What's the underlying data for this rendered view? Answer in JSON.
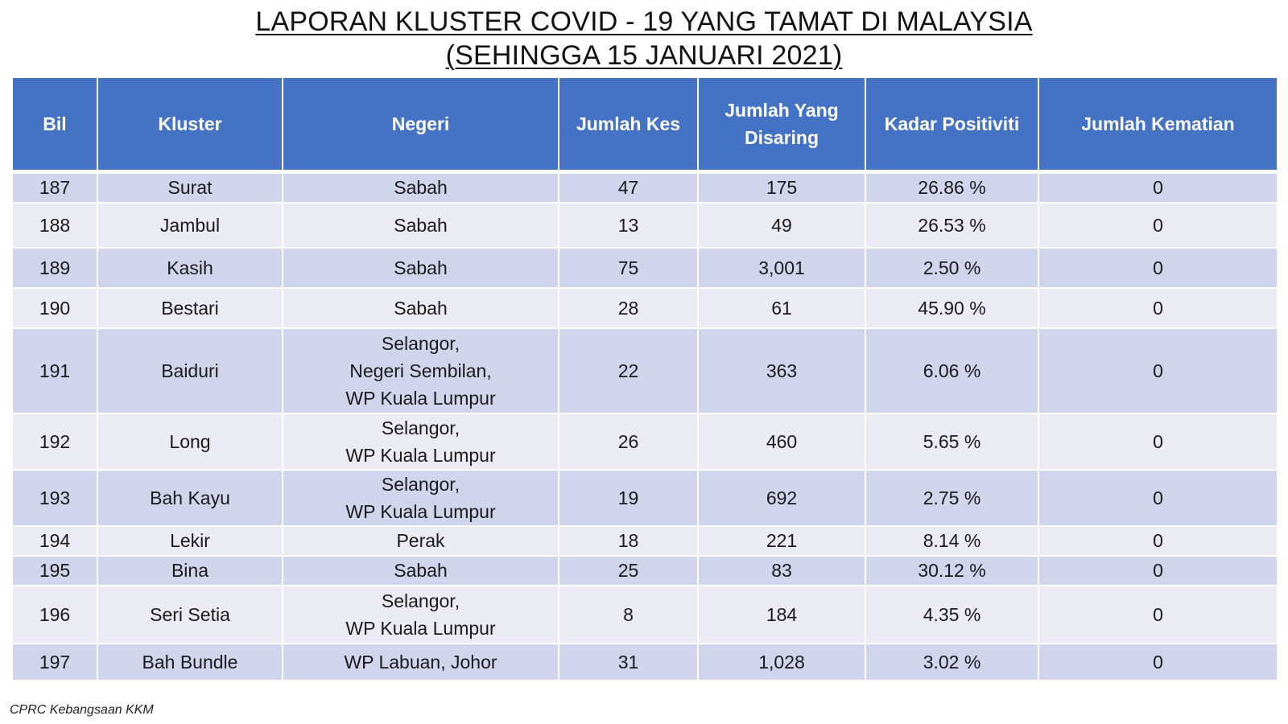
{
  "title": {
    "line1": "LAPORAN KLUSTER COVID - 19 YANG TAMAT DI MALAYSIA",
    "line2": "(SEHINGGA 15 JANUARI 2021)"
  },
  "table": {
    "headers": {
      "bil": "Bil",
      "kluster": "Kluster",
      "negeri": "Negeri",
      "jumlah_kes": "Jumlah Kes",
      "jumlah_disaring_1": "Jumlah Yang",
      "jumlah_disaring_2": "Disaring",
      "kadar_positiviti": "Kadar Positiviti",
      "jumlah_kematian": "Jumlah Kematian"
    },
    "rows": [
      {
        "bil": "187",
        "kluster": "Surat",
        "negeri": [
          "Sabah"
        ],
        "kes": "47",
        "disaring": "175",
        "positiviti": "26.86 %",
        "kematian": "0"
      },
      {
        "bil": "188",
        "kluster": "Jambul",
        "negeri": [
          "Sabah"
        ],
        "kes": "13",
        "disaring": "49",
        "positiviti": "26.53 %",
        "kematian": "0"
      },
      {
        "bil": "189",
        "kluster": "Kasih",
        "negeri": [
          "Sabah"
        ],
        "kes": "75",
        "disaring": "3,001",
        "positiviti": "2.50 %",
        "kematian": "0"
      },
      {
        "bil": "190",
        "kluster": "Bestari",
        "negeri": [
          "Sabah"
        ],
        "kes": "28",
        "disaring": "61",
        "positiviti": "45.90 %",
        "kematian": "0"
      },
      {
        "bil": "191",
        "kluster": "Baiduri",
        "negeri": [
          "Selangor,",
          "Negeri Sembilan,",
          "WP Kuala Lumpur"
        ],
        "kes": "22",
        "disaring": "363",
        "positiviti": "6.06 %",
        "kematian": "0"
      },
      {
        "bil": "192",
        "kluster": "Long",
        "negeri": [
          "Selangor,",
          "WP Kuala Lumpur"
        ],
        "kes": "26",
        "disaring": "460",
        "positiviti": "5.65 %",
        "kematian": "0"
      },
      {
        "bil": "193",
        "kluster": "Bah Kayu",
        "negeri": [
          "Selangor,",
          "WP Kuala Lumpur"
        ],
        "kes": "19",
        "disaring": "692",
        "positiviti": "2.75 %",
        "kematian": "0"
      },
      {
        "bil": "194",
        "kluster": "Lekir",
        "negeri": [
          "Perak"
        ],
        "kes": "18",
        "disaring": "221",
        "positiviti": "8.14 %",
        "kematian": "0"
      },
      {
        "bil": "195",
        "kluster": "Bina",
        "negeri": [
          "Sabah"
        ],
        "kes": "25",
        "disaring": "83",
        "positiviti": "30.12 %",
        "kematian": "0"
      },
      {
        "bil": "196",
        "kluster": "Seri Setia",
        "negeri": [
          "Selangor,",
          "WP Kuala Lumpur"
        ],
        "kes": "8",
        "disaring": "184",
        "positiviti": "4.35 %",
        "kematian": "0"
      },
      {
        "bil": "197",
        "kluster": "Bah Bundle",
        "negeri": [
          "WP Labuan, Johor"
        ],
        "kes": "31",
        "disaring": "1,028",
        "positiviti": "3.02 %",
        "kematian": "0"
      }
    ]
  },
  "footer": {
    "source": "CPRC Kebangsaan KKM"
  },
  "colors": {
    "header_bg": "#4472c4",
    "row_dark": "#cfd5ea",
    "row_light": "#e9ebf5"
  }
}
